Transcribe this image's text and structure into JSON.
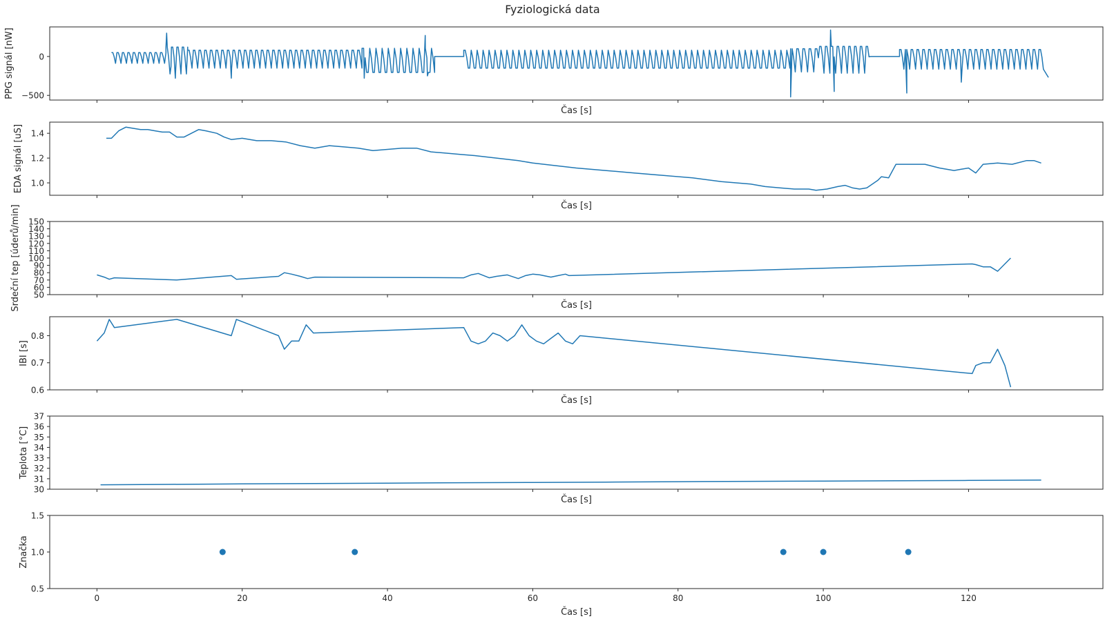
{
  "title": "Fyziologická data",
  "colors": {
    "series": "#1f77b4",
    "text": "#262626"
  },
  "chart_data": [
    {
      "type": "line",
      "id": "ppg",
      "ylabel": "PPG signál [nW]",
      "xlabel": "Čas [s]",
      "xlim": [
        -6.5,
        138.5
      ],
      "ylim": [
        -560,
        380
      ],
      "yticks": [
        -500,
        0
      ],
      "ytick_labels": [
        "−500",
        "0"
      ],
      "grid": false,
      "segments": [
        {
          "start": 2.0,
          "end": 9.5,
          "period": 0.75,
          "amplitude": 60,
          "offset": -10
        },
        {
          "start": 9.5,
          "end": 12.5,
          "period": 0.75,
          "amplitude": 150,
          "offset": -30
        },
        {
          "start": 12.5,
          "end": 36.5,
          "period": 0.78,
          "amplitude": 100,
          "offset": -20
        },
        {
          "start": 36.5,
          "end": 46.5,
          "period": 0.85,
          "amplitude": 135,
          "offset": -30
        },
        {
          "start": 46.5,
          "end": 50.5,
          "period": 0,
          "amplitude": 0,
          "offset": 0
        },
        {
          "start": 50.5,
          "end": 95.5,
          "period": 0.82,
          "amplitude": 100,
          "offset": -20
        },
        {
          "start": 95.5,
          "end": 99.5,
          "period": 0.85,
          "amplitude": 130,
          "offset": -30
        },
        {
          "start": 99.5,
          "end": 106.5,
          "period": 0.8,
          "amplitude": 150,
          "offset": -20
        },
        {
          "start": 106.5,
          "end": 110.5,
          "period": 0,
          "amplitude": 0,
          "offset": 0
        },
        {
          "start": 110.5,
          "end": 130.5,
          "period": 0.8,
          "amplitude": 110,
          "offset": -20
        }
      ],
      "spikes": [
        {
          "x": 9.6,
          "y": 300
        },
        {
          "x": 10.2,
          "y": -130
        },
        {
          "x": 10.8,
          "y": -280
        },
        {
          "x": 18.5,
          "y": -280
        },
        {
          "x": 36.8,
          "y": -280
        },
        {
          "x": 45.2,
          "y": 270
        },
        {
          "x": 45.5,
          "y": -250
        },
        {
          "x": 95.5,
          "y": -520
        },
        {
          "x": 101.0,
          "y": 340
        },
        {
          "x": 101.5,
          "y": -450
        },
        {
          "x": 111.5,
          "y": -470
        },
        {
          "x": 119.0,
          "y": -330
        },
        {
          "x": 131.0,
          "y": -270
        }
      ]
    },
    {
      "type": "line",
      "id": "eda",
      "ylabel": "EDA signál [uS]",
      "xlabel": "Čas [s]",
      "xlim": [
        -6.5,
        138.5
      ],
      "ylim": [
        0.9,
        1.49
      ],
      "yticks": [
        1.0,
        1.2,
        1.4
      ],
      "ytick_labels": [
        "1.0",
        "1.2",
        "1.4"
      ],
      "grid": false,
      "x": [
        1.3,
        2.0,
        3.0,
        4.0,
        5.0,
        6.0,
        7.0,
        8.0,
        9.0,
        10.0,
        11.0,
        12.0,
        13.0,
        14.0,
        15.0,
        16.5,
        17.5,
        18.5,
        20.0,
        22.0,
        24.0,
        26.0,
        28.0,
        30.0,
        32.0,
        34.0,
        36.0,
        38.0,
        40.0,
        42.0,
        44.0,
        46.0,
        48.0,
        50.0,
        52.0,
        55.0,
        58.0,
        60.0,
        63.0,
        66.0,
        70.0,
        74.0,
        78.0,
        82.0,
        86.0,
        88.0,
        90.0,
        92.0,
        94.0,
        96.0,
        97.0,
        98.0,
        99.0,
        100.5,
        102.0,
        103.0,
        104.0,
        105.0,
        106.0,
        107.5,
        108.0,
        109.0,
        110.0,
        112.0,
        114.0,
        116.0,
        118.0,
        119.0,
        120.0,
        121.0,
        122.0,
        124.0,
        126.0,
        128.0,
        129.0,
        130.0
      ],
      "y": [
        1.36,
        1.36,
        1.42,
        1.45,
        1.44,
        1.43,
        1.43,
        1.42,
        1.41,
        1.41,
        1.37,
        1.37,
        1.4,
        1.43,
        1.42,
        1.4,
        1.37,
        1.35,
        1.36,
        1.34,
        1.34,
        1.33,
        1.3,
        1.28,
        1.3,
        1.29,
        1.28,
        1.26,
        1.27,
        1.28,
        1.28,
        1.25,
        1.24,
        1.23,
        1.22,
        1.2,
        1.18,
        1.16,
        1.14,
        1.12,
        1.1,
        1.08,
        1.06,
        1.04,
        1.01,
        1.0,
        0.99,
        0.97,
        0.96,
        0.95,
        0.95,
        0.95,
        0.94,
        0.95,
        0.97,
        0.98,
        0.96,
        0.95,
        0.96,
        1.02,
        1.05,
        1.04,
        1.15,
        1.15,
        1.15,
        1.12,
        1.1,
        1.11,
        1.12,
        1.08,
        1.15,
        1.16,
        1.15,
        1.18,
        1.18,
        1.16
      ]
    },
    {
      "type": "line",
      "id": "hr",
      "ylabel": "Srdeční tep [úderů/min]",
      "xlabel": "Čas [s]",
      "xlim": [
        -6.5,
        138.5
      ],
      "ylim": [
        50,
        150
      ],
      "yticks": [
        50,
        60,
        70,
        80,
        90,
        100,
        110,
        120,
        130,
        140,
        150
      ],
      "ytick_labels": [
        "50",
        "60",
        "70",
        "80",
        "90",
        "100",
        "110",
        "120",
        "130",
        "140",
        "150"
      ],
      "grid": false,
      "x": [
        0.0,
        1.0,
        1.7,
        2.4,
        11.0,
        18.5,
        19.2,
        25.0,
        25.8,
        26.8,
        28.0,
        29.0,
        30.0,
        50.5,
        51.5,
        52.5,
        54.0,
        55.0,
        56.5,
        58.0,
        59.0,
        60.0,
        61.0,
        62.5,
        63.5,
        64.5,
        65.0,
        120.5,
        121.0,
        122.0,
        123.0,
        124.0,
        125.0,
        125.8
      ],
      "y": [
        77,
        74,
        71,
        73,
        70,
        76,
        71,
        75,
        80,
        78,
        75,
        72,
        74,
        73,
        77,
        79,
        73,
        75,
        77,
        72,
        76,
        78,
        77,
        74,
        76,
        78,
        76,
        92,
        91,
        88,
        88,
        82,
        92,
        100
      ]
    },
    {
      "type": "line",
      "id": "ibi",
      "ylabel": "IBI [s]",
      "xlabel": "Čas [s]",
      "xlim": [
        -6.5,
        138.5
      ],
      "ylim": [
        0.6,
        0.87
      ],
      "yticks": [
        0.6,
        0.7,
        0.8
      ],
      "ytick_labels": [
        "0.6",
        "0.7",
        "0.8"
      ],
      "grid": false,
      "x": [
        0.0,
        1.0,
        1.7,
        2.4,
        11.0,
        18.5,
        19.2,
        25.0,
        25.8,
        26.8,
        27.8,
        28.8,
        29.8,
        50.5,
        51.5,
        52.5,
        53.5,
        54.5,
        55.5,
        56.5,
        57.5,
        58.5,
        59.5,
        60.5,
        61.5,
        62.5,
        63.5,
        64.5,
        65.5,
        66.5,
        120.5,
        121.0,
        122.0,
        123.0,
        124.0,
        125.0,
        125.8
      ],
      "y": [
        0.78,
        0.81,
        0.86,
        0.83,
        0.86,
        0.8,
        0.86,
        0.8,
        0.75,
        0.78,
        0.78,
        0.84,
        0.81,
        0.83,
        0.78,
        0.77,
        0.78,
        0.81,
        0.8,
        0.78,
        0.8,
        0.84,
        0.8,
        0.78,
        0.77,
        0.79,
        0.81,
        0.78,
        0.77,
        0.8,
        0.66,
        0.69,
        0.7,
        0.7,
        0.75,
        0.69,
        0.61
      ]
    },
    {
      "type": "line",
      "id": "temp",
      "ylabel": "Teplota [°C]",
      "xlabel": "Čas [s]",
      "xlim": [
        -6.5,
        138.5
      ],
      "ylim": [
        30,
        37
      ],
      "yticks": [
        30,
        31,
        32,
        33,
        34,
        35,
        36,
        37
      ],
      "ytick_labels": [
        "30",
        "31",
        "32",
        "33",
        "34",
        "35",
        "36",
        "37"
      ],
      "grid": false,
      "x": [
        0.5,
        10.0,
        20.0,
        30.0,
        40.0,
        50.0,
        60.0,
        70.0,
        80.0,
        90.0,
        100.0,
        110.0,
        120.0,
        130.0
      ],
      "y": [
        30.42,
        30.46,
        30.51,
        30.55,
        30.58,
        30.62,
        30.65,
        30.68,
        30.72,
        30.75,
        30.78,
        30.81,
        30.84,
        30.88
      ]
    },
    {
      "type": "scatter",
      "id": "marker",
      "ylabel": "Značka",
      "xlabel": "Čas [s]",
      "xlim": [
        -6.5,
        138.5
      ],
      "ylim": [
        0.5,
        1.5
      ],
      "yticks": [
        0.5,
        1.0,
        1.5
      ],
      "ytick_labels": [
        "0.5",
        "1.0",
        "1.5"
      ],
      "xticks": [
        0,
        20,
        40,
        60,
        80,
        100,
        120
      ],
      "xtick_labels": [
        "0",
        "20",
        "40",
        "60",
        "80",
        "100",
        "120"
      ],
      "grid": false,
      "x": [
        17.3,
        35.5,
        94.5,
        100.0,
        111.7
      ],
      "y": [
        1.0,
        1.0,
        1.0,
        1.0,
        1.0
      ]
    }
  ]
}
